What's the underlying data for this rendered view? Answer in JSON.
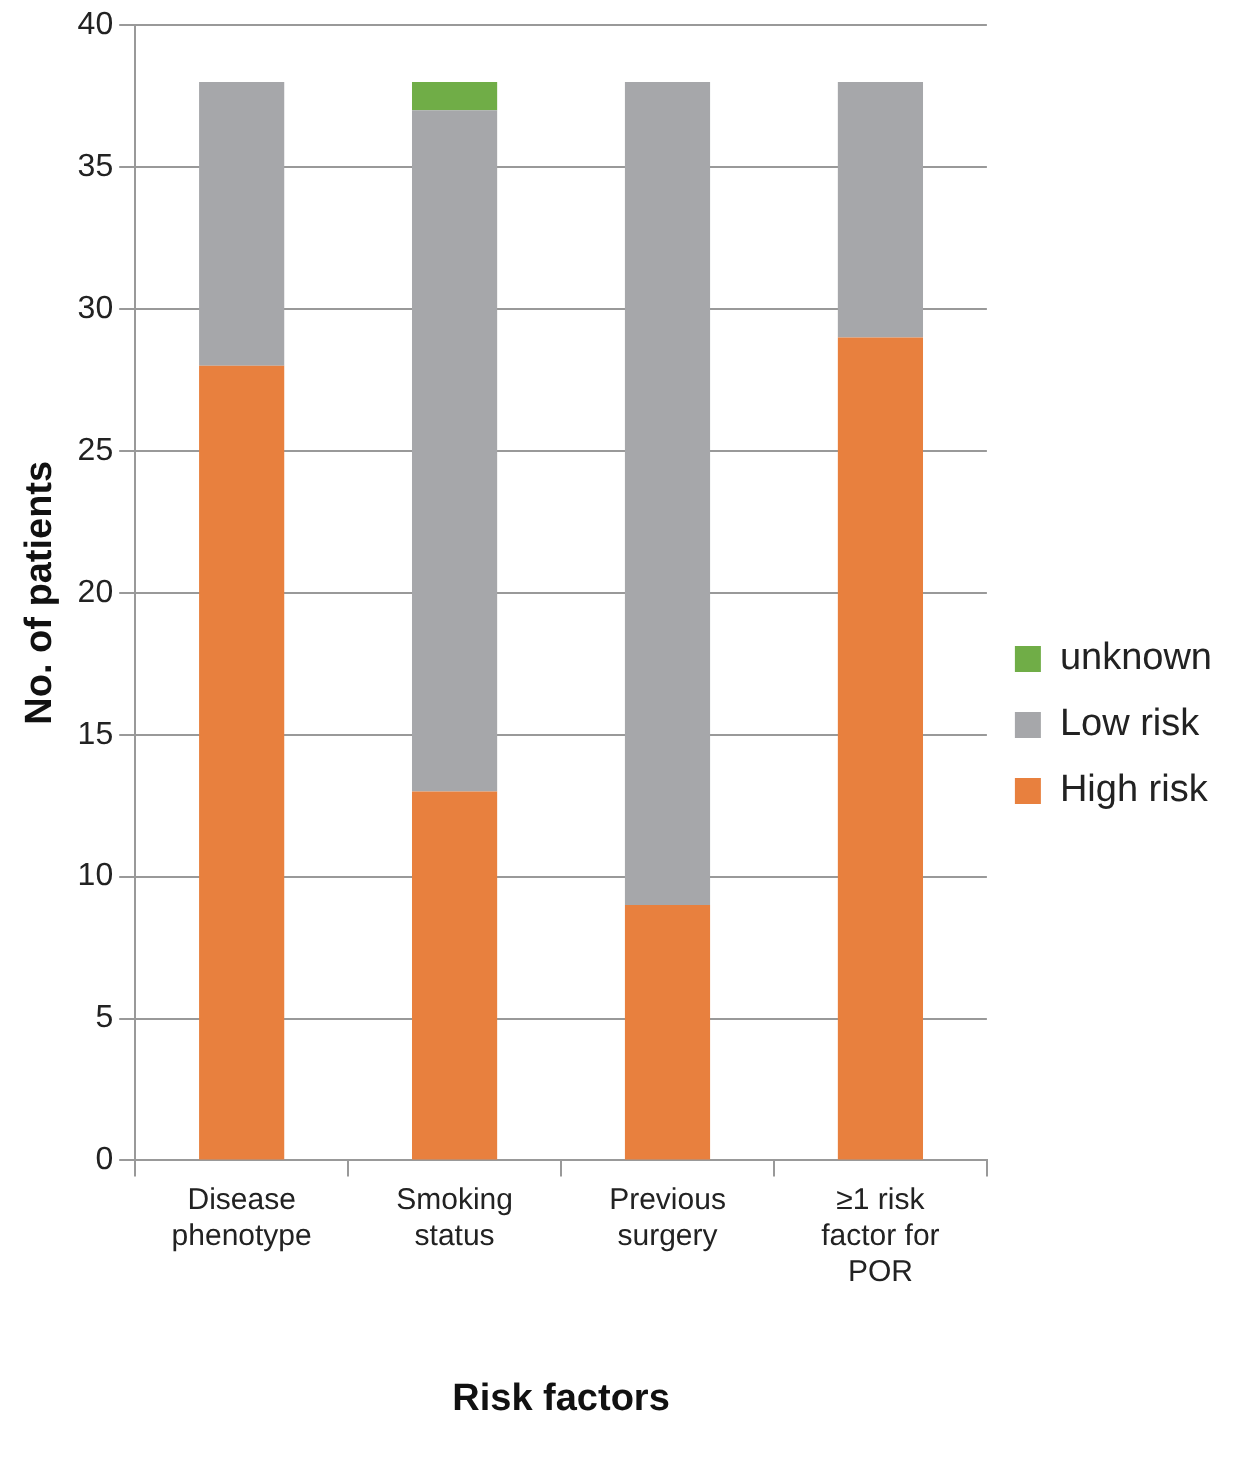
{
  "chart_data": {
    "type": "bar",
    "xlabel": "Risk factors",
    "ylabel": "No. of patients",
    "categories": [
      "Disease phenotype",
      "Smoking status",
      "Previous surgery",
      "≥1 risk factor for POR"
    ],
    "stacked": true,
    "series": [
      {
        "name": "High risk",
        "color": "#e8803e",
        "values": [
          28,
          13,
          9,
          29
        ]
      },
      {
        "name": "Low risk",
        "color": "#a6a7aa",
        "values": [
          10,
          24,
          29,
          9
        ]
      },
      {
        "name": "unknown",
        "color": "#70ad47",
        "values": [
          null,
          1,
          null,
          null
        ]
      }
    ],
    "ylim": [
      0,
      40
    ],
    "yticks": [
      0,
      5,
      10,
      15,
      20,
      25,
      30,
      35,
      40
    ],
    "grid": "y",
    "legend": "right"
  }
}
